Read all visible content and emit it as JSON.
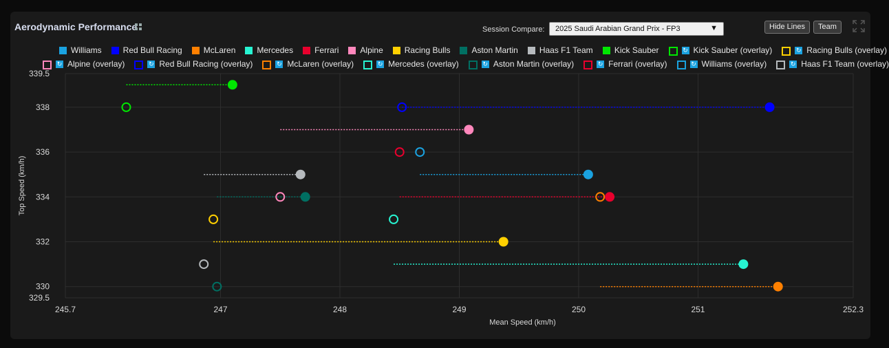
{
  "header": {
    "title": "Aerodynamic Performance",
    "session_label": "Session Compare:",
    "session_value": "2025 Saudi Arabian Grand Prix - FP3",
    "hide_lines_label": "Hide Lines",
    "team_label": "Team"
  },
  "legend": {
    "rows": [
      [
        {
          "label": "Williams",
          "color": "#1aa2e0",
          "style": "filled"
        },
        {
          "label": "Red Bull Racing",
          "color": "#0000ff",
          "style": "filled"
        },
        {
          "label": "McLaren",
          "color": "#ff8000",
          "style": "filled"
        },
        {
          "label": "Mercedes",
          "color": "#27f4d2",
          "style": "filled"
        },
        {
          "label": "Ferrari",
          "color": "#e8002d",
          "style": "filled"
        },
        {
          "label": "Alpine",
          "color": "#ff87bc",
          "style": "filled"
        },
        {
          "label": "Racing Bulls",
          "color": "#ffd000",
          "style": "filled"
        },
        {
          "label": "Aston Martin",
          "color": "#006f62",
          "style": "filled"
        },
        {
          "label": "Haas F1 Team",
          "color": "#b6babd",
          "style": "filled"
        },
        {
          "label": "Kick Sauber",
          "color": "#00e701",
          "style": "filled"
        },
        {
          "label": "Kick Sauber (overlay)",
          "color": "#00e701",
          "style": "overlay"
        },
        {
          "label": "Racing Bulls (overlay)",
          "color": "#ffd000",
          "style": "overlay"
        }
      ],
      [
        {
          "label": "Alpine (overlay)",
          "color": "#ff87bc",
          "style": "overlay"
        },
        {
          "label": "Red Bull Racing (overlay)",
          "color": "#0000ff",
          "style": "overlay"
        },
        {
          "label": "McLaren (overlay)",
          "color": "#ff8000",
          "style": "overlay"
        },
        {
          "label": "Mercedes (overlay)",
          "color": "#27f4d2",
          "style": "overlay"
        },
        {
          "label": "Aston Martin (overlay)",
          "color": "#006f62",
          "style": "overlay"
        },
        {
          "label": "Ferrari (overlay)",
          "color": "#e8002d",
          "style": "overlay"
        },
        {
          "label": "Williams (overlay)",
          "color": "#1aa2e0",
          "style": "overlay"
        },
        {
          "label": "Haas F1 Team (overlay)",
          "color": "#b6babd",
          "style": "overlay"
        }
      ]
    ]
  },
  "chart_data": {
    "type": "scatter",
    "title": "",
    "xlabel": "Mean Speed (km/h)",
    "ylabel": "Top Speed (km/h)",
    "xlim": [
      245.7,
      252.3
    ],
    "ylim": [
      329.5,
      339.5
    ],
    "xticks": [
      245.7,
      247,
      248,
      249,
      250,
      251,
      252.3
    ],
    "yticks": [
      329.5,
      330,
      332,
      334,
      336,
      338,
      339.5
    ],
    "grid": true,
    "series": [
      {
        "name": "Williams",
        "color": "#1aa2e0",
        "x": 250.08,
        "y": 335,
        "overlay_x": 248.67,
        "overlay_y": 336
      },
      {
        "name": "Red Bull Racing",
        "color": "#0000ff",
        "x": 251.6,
        "y": 338,
        "overlay_x": 248.52,
        "overlay_y": 338
      },
      {
        "name": "McLaren",
        "color": "#ff8000",
        "x": 251.67,
        "y": 330,
        "overlay_x": 250.18,
        "overlay_y": 334
      },
      {
        "name": "Mercedes",
        "color": "#27f4d2",
        "x": 251.38,
        "y": 331,
        "overlay_x": 248.45,
        "overlay_y": 333
      },
      {
        "name": "Ferrari",
        "color": "#e8002d",
        "x": 250.26,
        "y": 334,
        "overlay_x": 248.5,
        "overlay_y": 336
      },
      {
        "name": "Alpine",
        "color": "#ff87bc",
        "x": 249.08,
        "y": 337,
        "overlay_x": 247.5,
        "overlay_y": 334
      },
      {
        "name": "Racing Bulls",
        "color": "#ffd000",
        "x": 249.37,
        "y": 332,
        "overlay_x": 246.94,
        "overlay_y": 333
      },
      {
        "name": "Aston Martin",
        "color": "#006f62",
        "x": 247.71,
        "y": 334,
        "overlay_x": 246.97,
        "overlay_y": 330
      },
      {
        "name": "Haas F1 Team",
        "color": "#b6babd",
        "x": 247.67,
        "y": 335,
        "overlay_x": 246.86,
        "overlay_y": 331
      },
      {
        "name": "Kick Sauber",
        "color": "#00e701",
        "x": 247.1,
        "y": 339,
        "overlay_x": 246.21,
        "overlay_y": 338
      }
    ]
  }
}
